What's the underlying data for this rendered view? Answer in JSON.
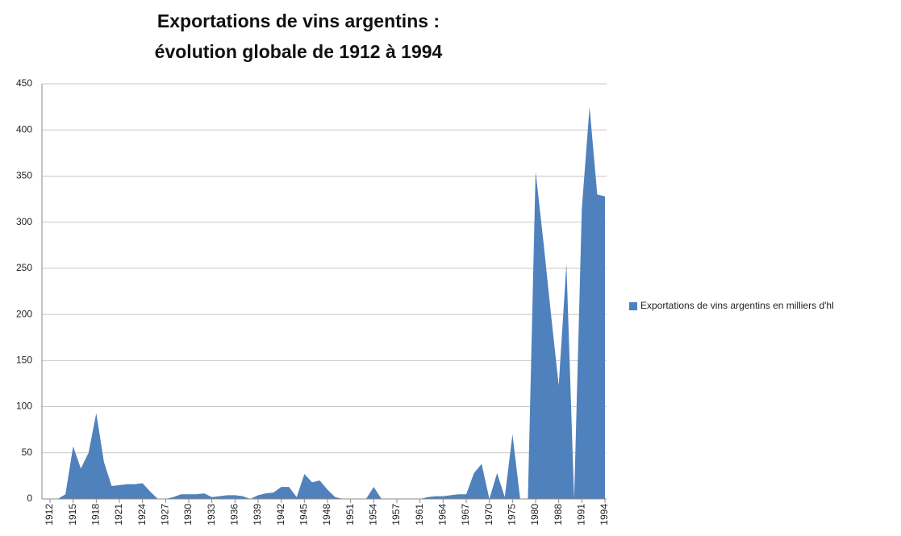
{
  "chart_data": {
    "type": "area",
    "title": [
      "Exportations de vins argentins :",
      "évolution globale de 1912 à 1994"
    ],
    "categories": [
      "1912",
      null,
      null,
      "1915",
      null,
      null,
      "1918",
      null,
      null,
      "1921",
      null,
      null,
      "1924",
      null,
      null,
      "1927",
      null,
      null,
      "1930",
      null,
      null,
      "1933",
      null,
      null,
      "1936",
      null,
      null,
      "1939",
      null,
      null,
      "1942",
      null,
      null,
      "1945",
      null,
      null,
      "1948",
      null,
      null,
      "1951",
      null,
      null,
      "1954",
      null,
      null,
      "1957",
      null,
      null,
      "1961",
      null,
      null,
      "1964",
      null,
      null,
      "1967",
      null,
      null,
      "1970",
      null,
      null,
      "1975",
      null,
      null,
      "1980",
      null,
      null,
      "1988",
      null,
      null,
      "1991",
      null,
      null,
      "1994"
    ],
    "series": [
      {
        "name": "Exportations de vins argentins en milliers d'hl",
        "color": "#4f81bd",
        "values": [
          0,
          0,
          5,
          57,
          33,
          50,
          93,
          40,
          14,
          15,
          16,
          16,
          17,
          8,
          0,
          0,
          2,
          5,
          5,
          5,
          6,
          2,
          3,
          4,
          4,
          3,
          0,
          4,
          6,
          7,
          13,
          13,
          2,
          27,
          18,
          20,
          10,
          2,
          0,
          0,
          0,
          0,
          13,
          0,
          0,
          0,
          0,
          0,
          0,
          2,
          3,
          3,
          4,
          5,
          5,
          28,
          38,
          0,
          28,
          2,
          70,
          0,
          0,
          355,
          280,
          200,
          123,
          255,
          0,
          315,
          425,
          330,
          328
        ]
      }
    ],
    "ylim": [
      0,
      450
    ],
    "yticks": [
      0,
      50,
      100,
      150,
      200,
      250,
      300,
      350,
      400,
      450
    ],
    "grid": true,
    "legend": "right"
  }
}
